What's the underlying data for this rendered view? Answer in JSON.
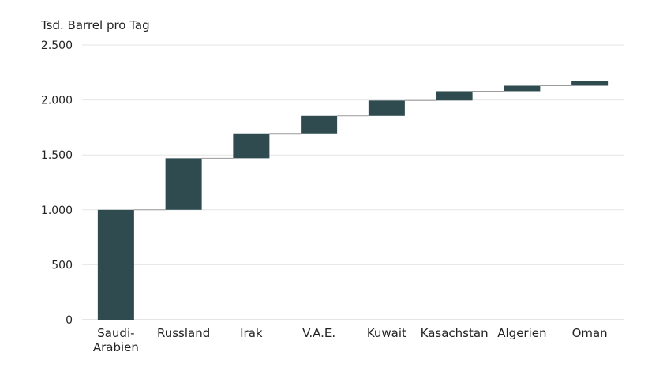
{
  "chart_data": {
    "type": "bar",
    "subtype": "waterfall",
    "ylabel": "Tsd. Barrel pro Tag",
    "ylim": [
      0,
      2500
    ],
    "yticks": [
      0,
      500,
      1000,
      1500,
      2000,
      2500
    ],
    "ytick_labels": [
      "0",
      "500",
      "1.000",
      "1.500",
      "2.000",
      "2.500"
    ],
    "categories": [
      "Saudi-Arabien",
      "Russland",
      "Irak",
      "V.A.E.",
      "Kuwait",
      "Kasachstan",
      "Algerien",
      "Oman"
    ],
    "category_label_lines": [
      [
        "Saudi-",
        "Arabien"
      ],
      [
        "Russland"
      ],
      [
        "Irak"
      ],
      [
        "V.A.E."
      ],
      [
        "Kuwait"
      ],
      [
        "Kasachstan"
      ],
      [
        "Algerien"
      ],
      [
        "Oman"
      ]
    ],
    "values": [
      1000,
      470,
      220,
      165,
      140,
      85,
      50,
      45
    ],
    "grid": "horizontal",
    "legend": "none",
    "bar_color": "#2f4b4f"
  }
}
